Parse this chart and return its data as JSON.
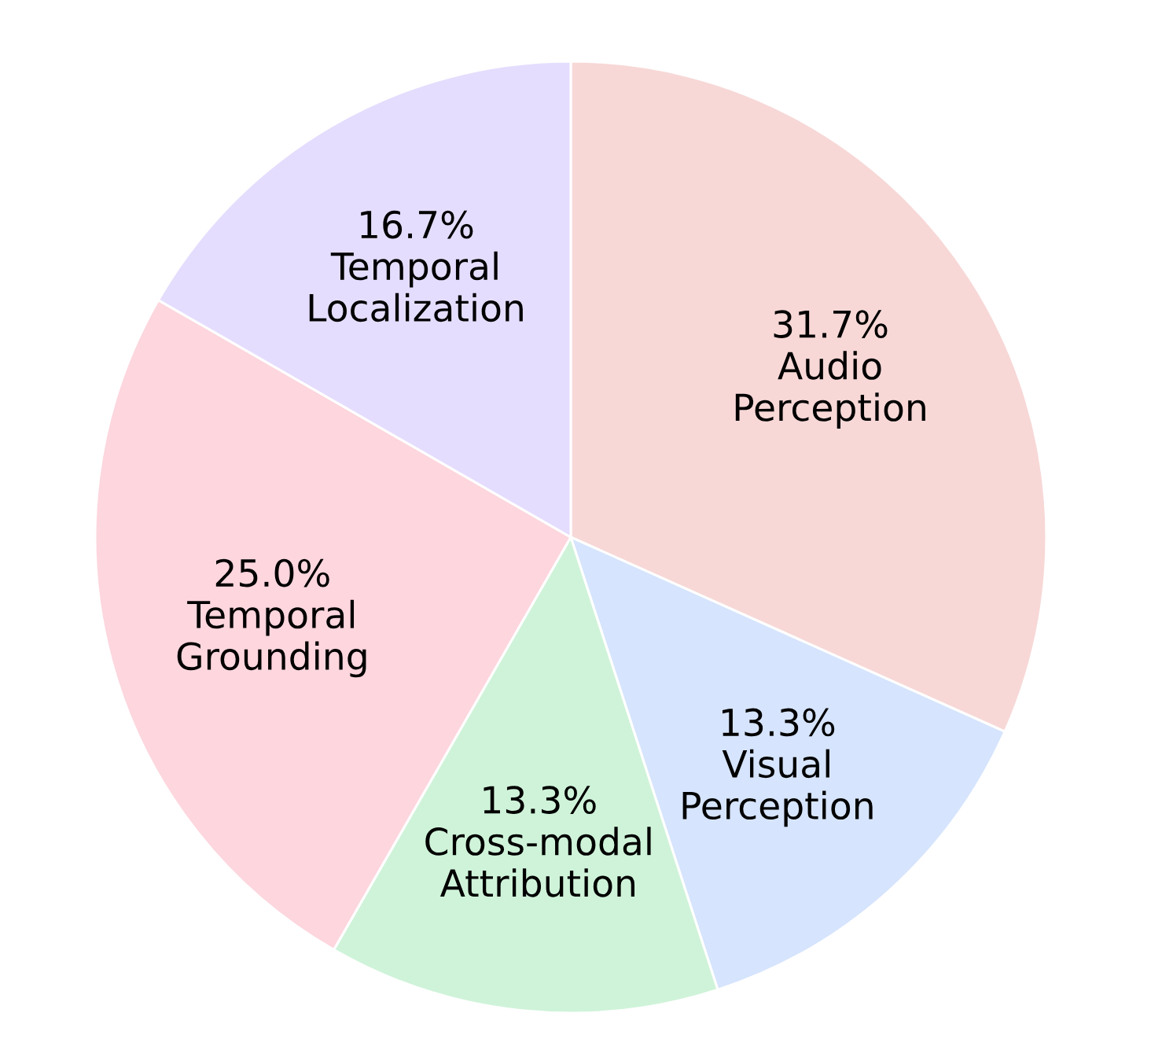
{
  "chart_data": {
    "type": "pie",
    "categories": [
      "Audio\nPerception",
      "Visual\nPerception",
      "Cross-modal\nAttribution",
      "Temporal\nGrounding",
      "Temporal\nLocalization"
    ],
    "values": [
      31.7,
      13.3,
      13.3,
      25.0,
      16.7
    ],
    "colors": [
      "#f7d8d7",
      "#d6e4fd",
      "#cff3d9",
      "#fdd6de",
      "#e5ddfe"
    ],
    "value_labels": [
      "31.7%",
      "13.3%",
      "13.3%",
      "25.0%",
      "16.7%"
    ]
  }
}
